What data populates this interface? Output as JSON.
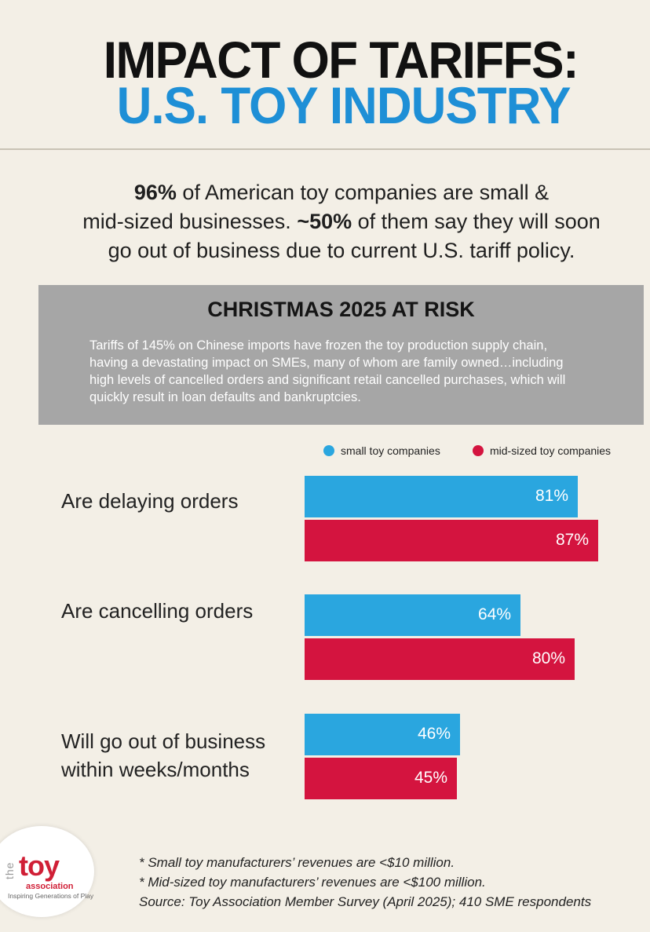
{
  "header": {
    "title_line1": "IMPACT OF TARIFFS:",
    "title_line2": "U.S. TOY INDUSTRY"
  },
  "intro": {
    "stat1": "96%",
    "text1": " of American toy companies are small &",
    "text2": "mid-sized businesses. ",
    "stat2": "~50%",
    "text3": " of them say they will soon",
    "text4": "go out of business due to current U.S. tariff policy."
  },
  "risk_box": {
    "title": "CHRISTMAS 2025 AT RISK",
    "line1": "Tariffs of 145% on Chinese imports have frozen the toy production supply chain,",
    "line2": "having a devastating impact on SMEs, many of whom are family owned…including",
    "line3": "high levels of cancelled orders and significant retail cancelled purchases, which will",
    "line4": "quickly result in loan defaults and bankruptcies."
  },
  "chart_data": {
    "type": "bar",
    "orientation": "horizontal",
    "categories": [
      "Are delaying orders",
      "Are cancelling orders",
      "Will go out of business within weeks/months"
    ],
    "category_lines": [
      [
        "Are delaying orders"
      ],
      [
        "Are cancelling orders"
      ],
      [
        "Will go out of business",
        "within weeks/months"
      ]
    ],
    "series": [
      {
        "name": "small toy companies",
        "values": [
          81,
          64,
          46
        ],
        "labels": [
          "81%",
          "64%",
          "46%"
        ],
        "color": "#2aa6df"
      },
      {
        "name": "mid-sized toy companies",
        "values": [
          87,
          80,
          45
        ],
        "labels": [
          "87%",
          "80%",
          "45%"
        ],
        "color": "#d4143f"
      }
    ],
    "legend_position": "top-right",
    "value_unit": "%"
  },
  "footnotes": {
    "line1": "* Small toy manufacturers’ revenues are <$10 million.",
    "line2": "* Mid-sized toy manufacturers’  revenues are <$100 million.",
    "line3": "Source: Toy Association Member Survey (April 2025); 410 SME respondents"
  },
  "logo": {
    "the": "the",
    "toy": "toy",
    "association": "association",
    "tagline": "Inspiring Generations of Play"
  }
}
